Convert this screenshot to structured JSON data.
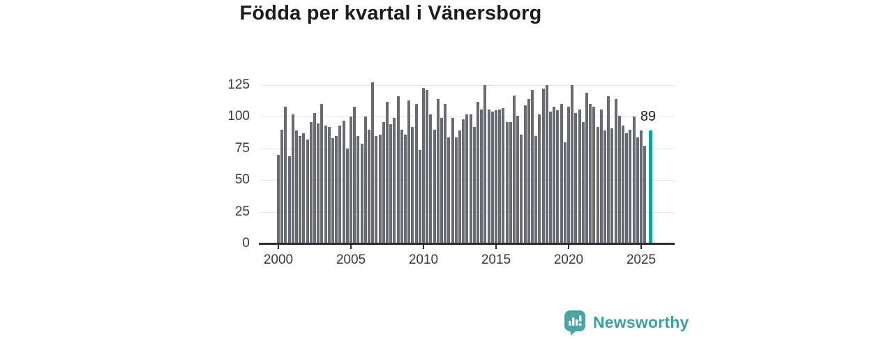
{
  "title": "Födda per kvartal i Vänersborg",
  "annotation": {
    "label": "89"
  },
  "branding": {
    "name": "Newsworthy",
    "icon": "bar-chart-speech-bubble-icon"
  },
  "colors": {
    "bar": "#6a6a72",
    "highlight": "#0aa49e",
    "gridline": "#e5e5e7",
    "axis": "#2d2d2d",
    "tick_text": "#383838",
    "title_text": "#1c1c1c",
    "brand": "#3fa0a1"
  },
  "chart_data": {
    "type": "bar",
    "title": "Födda per kvartal i Vänersborg",
    "xlabel": "",
    "ylabel": "",
    "frequency": "quarterly",
    "x_start": "2000 Q1",
    "x_end": "2025 Q3",
    "grid": true,
    "legend": false,
    "ylim": [
      0,
      130
    ],
    "y_ticks": [
      0,
      25,
      50,
      75,
      100,
      125
    ],
    "x_tick_years": [
      2000,
      2005,
      2010,
      2015,
      2020,
      2025
    ],
    "highlight_index": 102,
    "highlight_value": 89,
    "highlight_label": "89",
    "categories": [
      "2000 Q1",
      "2000 Q2",
      "2000 Q3",
      "2000 Q4",
      "2001 Q1",
      "2001 Q2",
      "2001 Q3",
      "2001 Q4",
      "2002 Q1",
      "2002 Q2",
      "2002 Q3",
      "2002 Q4",
      "2003 Q1",
      "2003 Q2",
      "2003 Q3",
      "2003 Q4",
      "2004 Q1",
      "2004 Q2",
      "2004 Q3",
      "2004 Q4",
      "2005 Q1",
      "2005 Q2",
      "2005 Q3",
      "2005 Q4",
      "2006 Q1",
      "2006 Q2",
      "2006 Q3",
      "2006 Q4",
      "2007 Q1",
      "2007 Q2",
      "2007 Q3",
      "2007 Q4",
      "2008 Q1",
      "2008 Q2",
      "2008 Q3",
      "2008 Q4",
      "2009 Q1",
      "2009 Q2",
      "2009 Q3",
      "2009 Q4",
      "2010 Q1",
      "2010 Q2",
      "2010 Q3",
      "2010 Q4",
      "2011 Q1",
      "2011 Q2",
      "2011 Q3",
      "2011 Q4",
      "2012 Q1",
      "2012 Q2",
      "2012 Q3",
      "2012 Q4",
      "2013 Q1",
      "2013 Q2",
      "2013 Q3",
      "2013 Q4",
      "2014 Q1",
      "2014 Q2",
      "2014 Q3",
      "2014 Q4",
      "2015 Q1",
      "2015 Q2",
      "2015 Q3",
      "2015 Q4",
      "2016 Q1",
      "2016 Q2",
      "2016 Q3",
      "2016 Q4",
      "2017 Q1",
      "2017 Q2",
      "2017 Q3",
      "2017 Q4",
      "2018 Q1",
      "2018 Q2",
      "2018 Q3",
      "2018 Q4",
      "2019 Q1",
      "2019 Q2",
      "2019 Q3",
      "2019 Q4",
      "2020 Q1",
      "2020 Q2",
      "2020 Q3",
      "2020 Q4",
      "2021 Q1",
      "2021 Q2",
      "2021 Q3",
      "2021 Q4",
      "2022 Q1",
      "2022 Q2",
      "2022 Q3",
      "2022 Q4",
      "2023 Q1",
      "2023 Q2",
      "2023 Q3",
      "2023 Q4",
      "2024 Q1",
      "2024 Q2",
      "2024 Q3",
      "2024 Q4",
      "2025 Q1",
      "2025 Q2",
      "2025 Q3"
    ],
    "values": [
      70,
      90,
      108,
      69,
      102,
      89,
      85,
      87,
      82,
      96,
      103,
      95,
      110,
      93,
      92,
      83,
      85,
      93,
      97,
      75,
      100,
      108,
      85,
      79,
      100,
      90,
      127,
      85,
      86,
      96,
      112,
      94,
      99,
      116,
      90,
      86,
      113,
      92,
      110,
      74,
      123,
      121,
      102,
      90,
      114,
      99,
      110,
      84,
      99,
      84,
      89,
      98,
      102,
      102,
      92,
      112,
      106,
      125,
      106,
      104,
      105,
      106,
      107,
      96,
      96,
      117,
      101,
      86,
      109,
      114,
      121,
      85,
      102,
      122,
      125,
      104,
      108,
      105,
      110,
      80,
      108,
      125,
      103,
      106,
      96,
      119,
      110,
      108,
      92,
      106,
      89,
      116,
      91,
      114,
      101,
      93,
      87,
      90,
      100,
      84,
      89,
      77,
      89
    ]
  }
}
